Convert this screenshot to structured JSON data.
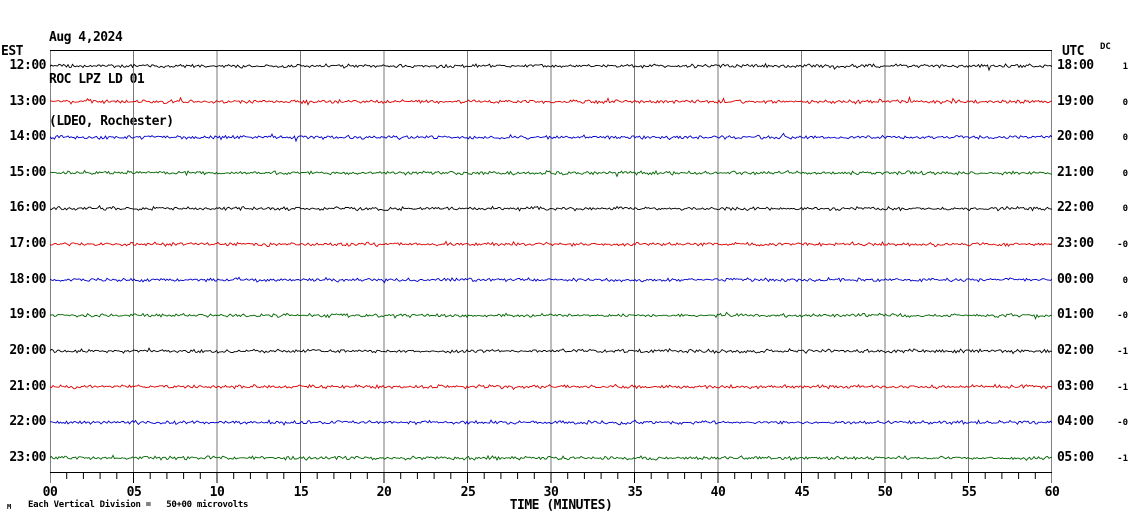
{
  "header": {
    "date": "Aug 4,2024",
    "station": "ROC LPZ LD 01",
    "location": "(LDEO, Rochester)"
  },
  "axes": {
    "left_label": "EST",
    "right_label": "UTC",
    "dc_label": "DC",
    "x_label": "TIME (MINUTES)",
    "x_ticks": [
      "00",
      "05",
      "10",
      "15",
      "20",
      "25",
      "30",
      "35",
      "40",
      "45",
      "50",
      "55",
      "60"
    ]
  },
  "rows": [
    {
      "est": "12:00",
      "utc": "18:00",
      "dc": "1",
      "color": "#000000"
    },
    {
      "est": "13:00",
      "utc": "19:00",
      "dc": "0",
      "color": "#dd0000"
    },
    {
      "est": "14:00",
      "utc": "20:00",
      "dc": "0",
      "color": "#0000cc"
    },
    {
      "est": "15:00",
      "utc": "21:00",
      "dc": "0",
      "color": "#006600"
    },
    {
      "est": "16:00",
      "utc": "22:00",
      "dc": "0",
      "color": "#000000"
    },
    {
      "est": "17:00",
      "utc": "23:00",
      "dc": "-0",
      "color": "#dd0000"
    },
    {
      "est": "18:00",
      "utc": "00:00",
      "dc": "0",
      "color": "#0000cc"
    },
    {
      "est": "19:00",
      "utc": "01:00",
      "dc": "-0",
      "color": "#006600"
    },
    {
      "est": "20:00",
      "utc": "02:00",
      "dc": "-1",
      "color": "#000000"
    },
    {
      "est": "21:00",
      "utc": "03:00",
      "dc": "-1",
      "color": "#dd0000"
    },
    {
      "est": "22:00",
      "utc": "04:00",
      "dc": "-0",
      "color": "#0000cc"
    },
    {
      "est": "23:00",
      "utc": "05:00",
      "dc": "-1",
      "color": "#006600"
    }
  ],
  "footer": {
    "corner_glyph": "M",
    "division_note": "Each Vertical Division =   50+00 microvolts"
  },
  "colors": {
    "grid": "#777777",
    "frame": "#000000",
    "background": "#ffffff"
  },
  "chart_data": {
    "type": "line",
    "title": "ROC LPZ LD 01 helicorder record, Aug 4,2024 (LDEO, Rochester)",
    "xlabel": "TIME (MINUTES)",
    "x_range": [
      0,
      60
    ],
    "x_major_tick_interval_minutes": 5,
    "x_minor_tick_interval_minutes": 1,
    "grid": "vertical gridlines every 5 minutes",
    "vertical_division_microvolts": 50.0,
    "rows_are_hourly_traces": true,
    "trace_color_cycle": [
      "black",
      "red",
      "blue",
      "green"
    ],
    "traces": [
      {
        "est_start": "12:00",
        "utc_start": "18:00",
        "dc_offset": 1,
        "color": "#000000",
        "signal": "flat background noise, ~±3 microvolts, no events"
      },
      {
        "est_start": "13:00",
        "utc_start": "19:00",
        "dc_offset": 0,
        "color": "#dd0000",
        "signal": "flat background noise, ~±3 microvolts, no events"
      },
      {
        "est_start": "14:00",
        "utc_start": "20:00",
        "dc_offset": 0,
        "color": "#0000cc",
        "signal": "flat background noise, ~±3 microvolts, no events"
      },
      {
        "est_start": "15:00",
        "utc_start": "21:00",
        "dc_offset": 0,
        "color": "#006600",
        "signal": "flat background noise, ~±3 microvolts, no events"
      },
      {
        "est_start": "16:00",
        "utc_start": "22:00",
        "dc_offset": 0,
        "color": "#000000",
        "signal": "flat background noise, ~±3 microvolts, no events"
      },
      {
        "est_start": "17:00",
        "utc_start": "23:00",
        "dc_offset": 0,
        "color": "#dd0000",
        "signal": "flat background noise, ~±3 microvolts, no events"
      },
      {
        "est_start": "18:00",
        "utc_start": "00:00",
        "dc_offset": 0,
        "color": "#0000cc",
        "signal": "flat background noise, ~±3 microvolts, no events"
      },
      {
        "est_start": "19:00",
        "utc_start": "01:00",
        "dc_offset": 0,
        "color": "#006600",
        "signal": "flat background noise, ~±3 microvolts, no events"
      },
      {
        "est_start": "20:00",
        "utc_start": "02:00",
        "dc_offset": -1,
        "color": "#000000",
        "signal": "flat background noise, ~±3 microvolts, no events"
      },
      {
        "est_start": "21:00",
        "utc_start": "03:00",
        "dc_offset": -1,
        "color": "#dd0000",
        "signal": "flat background noise, ~±3 microvolts, no events"
      },
      {
        "est_start": "22:00",
        "utc_start": "04:00",
        "dc_offset": 0,
        "color": "#0000cc",
        "signal": "flat background noise, ~±3 microvolts, no events"
      },
      {
        "est_start": "23:00",
        "utc_start": "05:00",
        "dc_offset": -1,
        "color": "#006600",
        "signal": "flat background noise, ~±3 microvolts, no events"
      }
    ]
  }
}
